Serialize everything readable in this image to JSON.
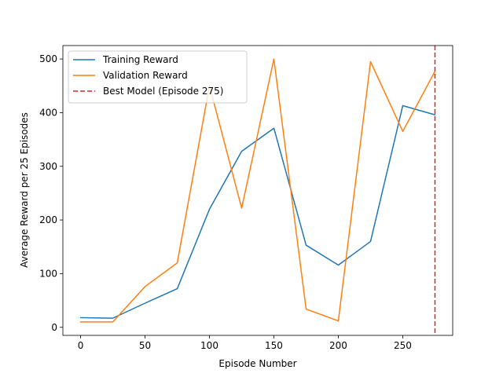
{
  "chart_data": {
    "type": "line",
    "title": "",
    "xlabel": "Episode Number",
    "ylabel": "Average Reward per 25 Episodes",
    "xlim": [
      -13.75,
      288.75
    ],
    "ylim": [
      -15,
      525
    ],
    "xticks": [
      0,
      50,
      100,
      150,
      200,
      250
    ],
    "yticks": [
      0,
      100,
      200,
      300,
      400,
      500
    ],
    "grid": false,
    "legend_position": "top-left",
    "x": [
      0,
      25,
      50,
      75,
      100,
      125,
      150,
      175,
      200,
      225,
      250,
      275
    ],
    "series": [
      {
        "name": "Training Reward",
        "color": "#1f77b4",
        "values": [
          18,
          17,
          45,
          72,
          220,
          328,
          371,
          153,
          116,
          160,
          413,
          396
        ]
      },
      {
        "name": "Validation Reward",
        "color": "#ff7f0e",
        "values": [
          10,
          10,
          76,
          120,
          450,
          222,
          500,
          34,
          12,
          495,
          365,
          477
        ]
      }
    ],
    "reference_lines": [
      {
        "name": "Best Model (Episode 275)",
        "orientation": "vertical",
        "x": 275,
        "color": "#d62728",
        "style": "dashed"
      }
    ]
  }
}
